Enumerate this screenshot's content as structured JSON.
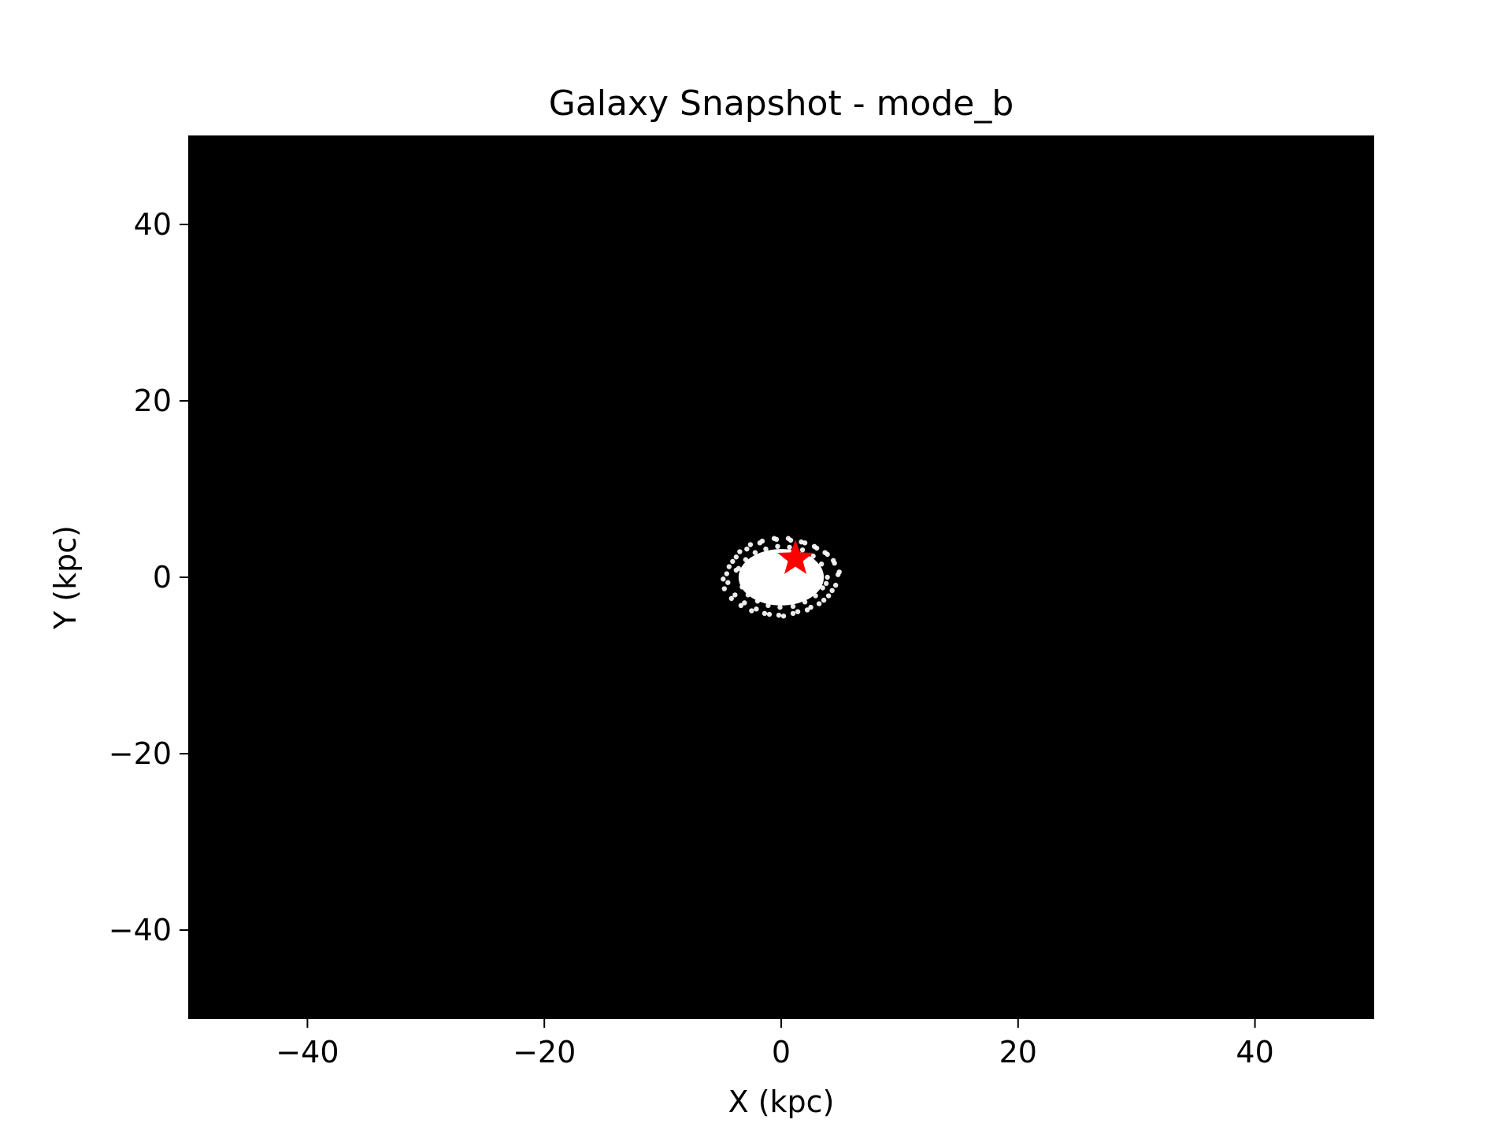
{
  "chart_data": {
    "type": "scatter",
    "title": "Galaxy Snapshot - mode_b",
    "xlabel": "X (kpc)",
    "ylabel": "Y (kpc)",
    "xlim": [
      -50,
      50
    ],
    "ylim": [
      -50,
      50
    ],
    "xticks": [
      -40,
      -20,
      0,
      20,
      40
    ],
    "yticks": [
      -40,
      -20,
      0,
      20,
      40
    ],
    "xtick_labels": [
      "−40",
      "−20",
      "0",
      "20",
      "40"
    ],
    "ytick_labels": [
      "−40",
      "−20",
      "0",
      "20",
      "40"
    ],
    "grid": false,
    "background_color": "#000000",
    "series": [
      {
        "marker": "point",
        "color": "#ffffff",
        "x": [
          -4.6,
          -4.1,
          -3.5,
          -2.6,
          -1.6,
          -0.4,
          0.8,
          2.0,
          3.0,
          3.9,
          4.5,
          4.8,
          4.6,
          4.0,
          3.2,
          2.2,
          1.0,
          -0.2,
          -1.4,
          -2.5,
          -3.4,
          -4.2,
          -4.8,
          -4.9,
          -4.4,
          -3.8,
          -2.9,
          -1.8,
          -0.6,
          0.6,
          1.7,
          2.8,
          3.7,
          4.4,
          4.9,
          4.3,
          3.6,
          2.5,
          1.4,
          0.2,
          -1.0,
          -2.1,
          -3.1,
          -3.9,
          -4.5,
          -3.6,
          -3.0,
          -2.2,
          -1.3,
          -0.3,
          0.7,
          1.8,
          2.7,
          3.4,
          3.9,
          3.5,
          2.9,
          2.0,
          1.0,
          -0.1,
          -1.1,
          -2.0,
          -2.8,
          -3.3,
          -2.5,
          -1.7,
          -0.8,
          0.2,
          1.2,
          2.1,
          2.8,
          2.3,
          1.5,
          0.5,
          -0.5,
          -1.5,
          -2.3,
          -1.6,
          -0.9,
          0.0,
          0.9,
          1.7,
          1.1,
          0.3,
          -0.6,
          -1.2,
          -0.2,
          0.6,
          1.6,
          -2.7,
          2.4,
          -3.8,
          3.8,
          -1.9,
          1.9
        ],
        "y": [
          0.4,
          1.8,
          2.9,
          3.7,
          4.1,
          4.3,
          4.2,
          3.9,
          3.3,
          2.6,
          1.6,
          0.3,
          -0.9,
          -2.1,
          -3.0,
          -3.7,
          -4.1,
          -4.3,
          -4.1,
          -3.8,
          -3.2,
          -2.4,
          -1.3,
          -0.2,
          1.2,
          2.3,
          3.2,
          3.9,
          4.4,
          4.4,
          4.0,
          3.5,
          2.8,
          1.9,
          0.6,
          -1.5,
          -2.6,
          -3.4,
          -3.9,
          -4.4,
          -4.2,
          -3.6,
          -2.9,
          -2.0,
          -0.6,
          1.0,
          2.0,
          2.8,
          3.2,
          3.5,
          3.4,
          3.1,
          2.4,
          1.5,
          0.0,
          -1.2,
          -2.1,
          -2.8,
          -3.3,
          -3.4,
          -3.2,
          -2.7,
          -2.0,
          -1.1,
          0.6,
          1.5,
          2.2,
          2.5,
          2.3,
          1.6,
          0.5,
          -0.9,
          -1.7,
          -2.2,
          -2.3,
          -1.9,
          -1.2,
          0.2,
          0.9,
          1.3,
          1.0,
          0.1,
          -0.8,
          -1.1,
          -1.0,
          -0.3,
          0.0,
          0.5,
          -0.2,
          -0.3,
          -0.4,
          0.8,
          -0.7,
          1.4,
          1.1
        ]
      },
      {
        "marker": "star",
        "color": "#ff0000",
        "x": [
          1.2
        ],
        "y": [
          2.1
        ]
      }
    ]
  }
}
